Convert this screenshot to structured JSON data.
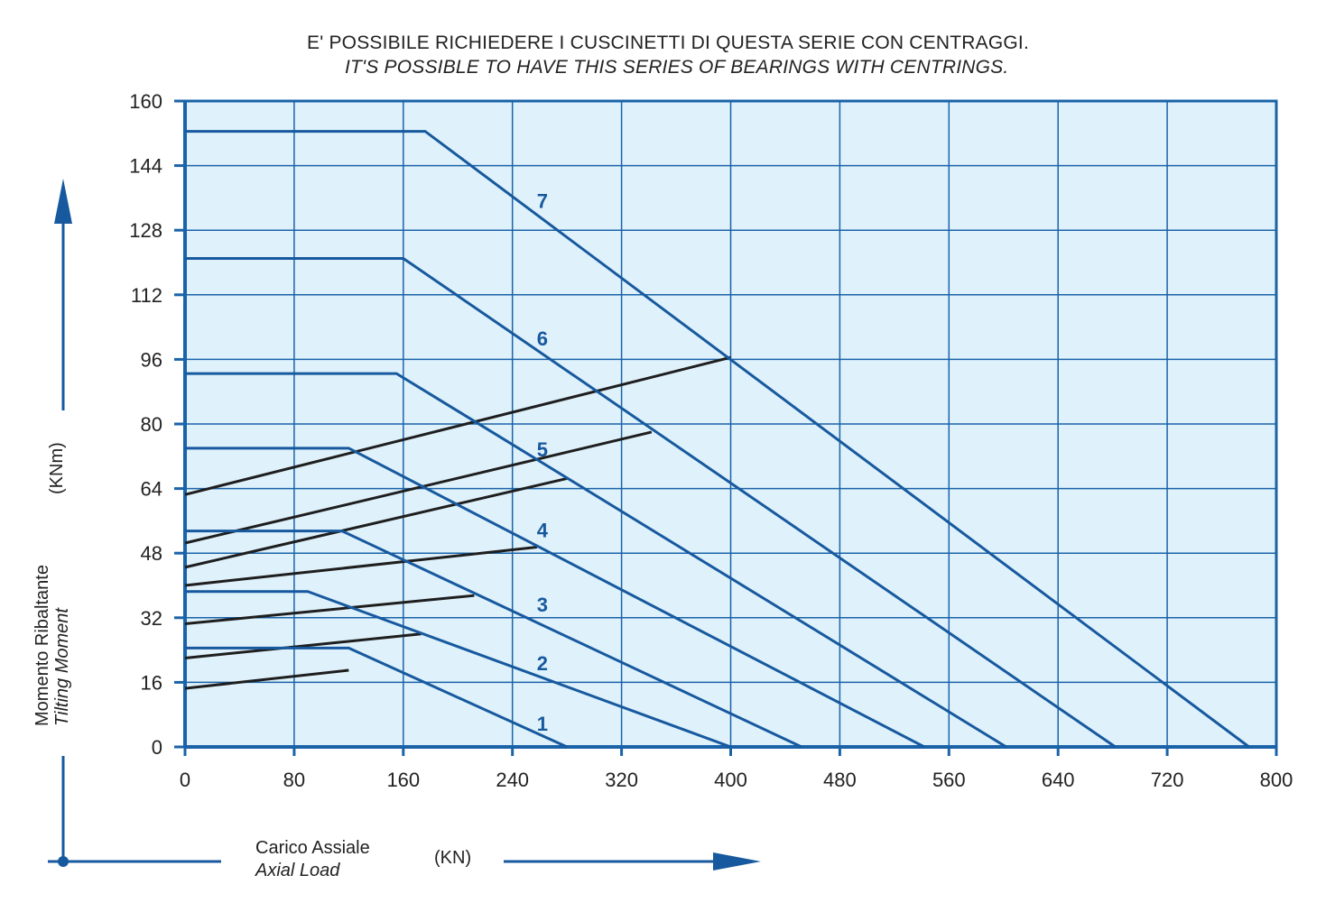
{
  "header": {
    "line1": "E' POSSIBILE RICHIEDERE I CUSCINETTI DI QUESTA SERIE CON CENTRAGGI.",
    "line2": "IT'S POSSIBLE TO HAVE THIS SERIES OF BEARINGS WITH CENTRINGS."
  },
  "colors": {
    "plot_bg": "#dff1fb",
    "grid": "#1a63a8",
    "curve": "#17599e",
    "black_line": "#1e1e1e",
    "label": "#17599e"
  },
  "y_axis": {
    "label_it": "Momento Ribaltante",
    "label_en": "Tilting Moment",
    "unit": "(KNm)"
  },
  "x_axis": {
    "label_it": "Carico Assiale",
    "label_en": "Axial Load",
    "unit": "(KN)"
  },
  "chart_data": {
    "type": "line",
    "xlim": [
      0,
      800
    ],
    "ylim": [
      0,
      160
    ],
    "x_ticks": [
      0,
      80,
      160,
      240,
      320,
      400,
      480,
      560,
      640,
      720,
      800
    ],
    "y_ticks": [
      0,
      16,
      32,
      48,
      64,
      80,
      96,
      112,
      128,
      144,
      160
    ],
    "grid": true,
    "series": [
      {
        "name": "1",
        "points": [
          [
            0,
            24.5
          ],
          [
            120,
            24.5
          ],
          [
            280,
            0
          ]
        ],
        "label_at": [
          260,
          6
        ]
      },
      {
        "name": "2",
        "points": [
          [
            0,
            38.5
          ],
          [
            90,
            38.5
          ],
          [
            400,
            0
          ]
        ],
        "label_at": [
          260,
          21
        ]
      },
      {
        "name": "3",
        "points": [
          [
            0,
            53.5
          ],
          [
            115,
            53.5
          ],
          [
            452,
            0
          ]
        ],
        "label_at": [
          260,
          35.5
        ]
      },
      {
        "name": "4",
        "points": [
          [
            0,
            74
          ],
          [
            120,
            74
          ],
          [
            542,
            0
          ]
        ],
        "label_at": [
          260,
          54
        ]
      },
      {
        "name": "5",
        "points": [
          [
            0,
            92.5
          ],
          [
            155,
            92.5
          ],
          [
            602,
            0
          ]
        ],
        "label_at": [
          260,
          74
        ]
      },
      {
        "name": "6",
        "points": [
          [
            0,
            121
          ],
          [
            160,
            121
          ],
          [
            682,
            0
          ]
        ],
        "label_at": [
          260,
          101.5
        ]
      },
      {
        "name": "7",
        "points": [
          [
            0,
            152.5
          ],
          [
            176,
            152.5
          ],
          [
            780,
            0
          ]
        ],
        "label_at": [
          260,
          135.5
        ]
      }
    ],
    "reference_lines": [
      {
        "points": [
          [
            0,
            14.5
          ],
          [
            120,
            19
          ]
        ]
      },
      {
        "points": [
          [
            0,
            22
          ],
          [
            173,
            28
          ]
        ]
      },
      {
        "points": [
          [
            0,
            30.5
          ],
          [
            212,
            37.5
          ]
        ]
      },
      {
        "points": [
          [
            0,
            40
          ],
          [
            258,
            49.5
          ]
        ]
      },
      {
        "points": [
          [
            0,
            44.5
          ],
          [
            280,
            66.5
          ]
        ]
      },
      {
        "points": [
          [
            0,
            50.5
          ],
          [
            342,
            78
          ]
        ]
      },
      {
        "points": [
          [
            0,
            62.5
          ],
          [
            400,
            96.5
          ]
        ]
      }
    ]
  }
}
